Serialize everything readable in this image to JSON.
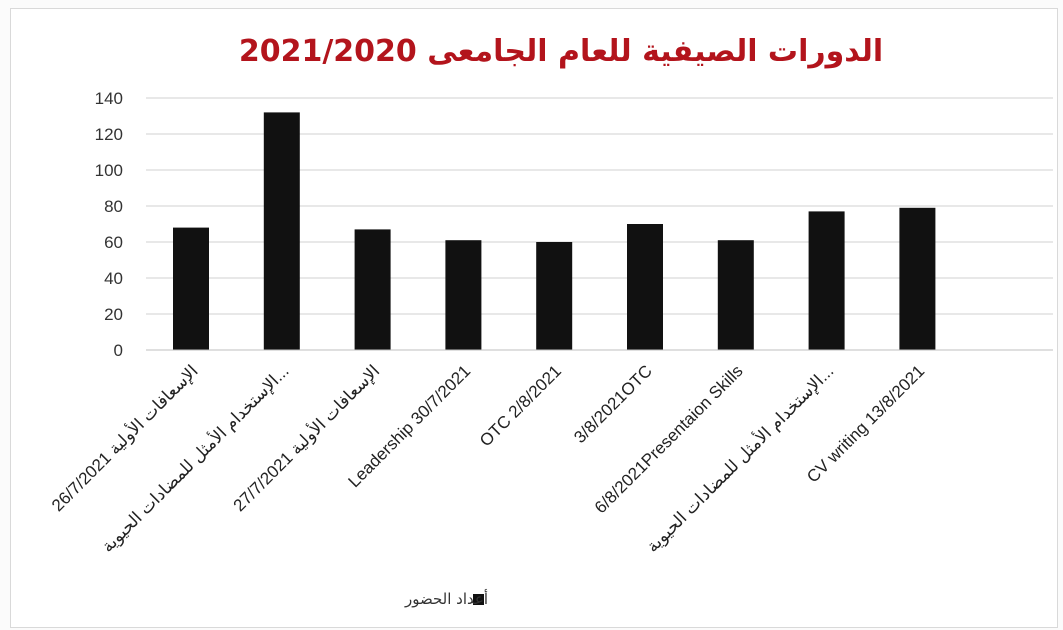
{
  "chart_data": {
    "type": "bar",
    "title": "الدورات الصيفية للعام الجامعى 2021/2020",
    "categories": [
      "الإسعافات الأولية 26/7/2021",
      "الإستخدام الأمثل للمضادات الحيوية...",
      "الإسعافات الأولية 27/7/2021",
      "Leadership 30/7/2021",
      "OTC 2/8/2021",
      "3/8/2021OTC",
      "6/8/2021Presentaion Skills",
      "الإستخدام الأمثل للمضادات الحيوية...",
      "CV writing 13/8/2021"
    ],
    "series": [
      {
        "name": "أعداد الحضور",
        "values": [
          68,
          132,
          67,
          61,
          60,
          70,
          61,
          77,
          79
        ]
      }
    ],
    "ylim": [
      0,
      140
    ],
    "yticks": [
      0,
      20,
      40,
      60,
      80,
      100,
      120,
      140
    ],
    "grid": true,
    "legend": "bottom",
    "colors": {
      "bar": "#111111",
      "title": "#b3141c",
      "grid": "#d0d0d0"
    }
  }
}
